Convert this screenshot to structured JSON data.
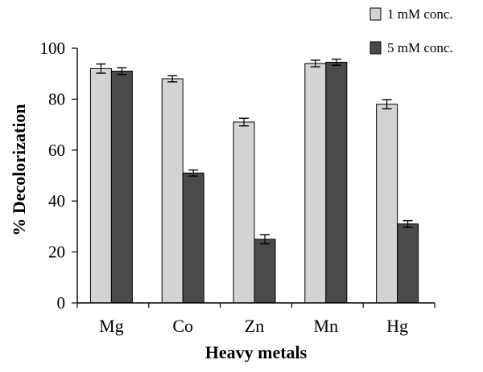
{
  "chart_data": {
    "type": "bar",
    "title": "",
    "xlabel": "Heavy metals",
    "ylabel": "% Decolorization",
    "ylim": [
      0,
      100
    ],
    "yticks": [
      0,
      20,
      40,
      60,
      80,
      100
    ],
    "categories": [
      "Mg",
      "Co",
      "Zn",
      "Mn",
      "Hg"
    ],
    "series": [
      {
        "name": "1 mM conc.",
        "color": "#d3d3d3",
        "values": [
          92,
          88,
          71,
          94,
          78
        ],
        "errors": [
          1.8,
          1.2,
          1.5,
          1.3,
          1.8
        ]
      },
      {
        "name": "5 mM conc.",
        "color": "#4a4a4a",
        "values": [
          91,
          51,
          25,
          94.5,
          31
        ],
        "errors": [
          1.3,
          1.2,
          1.8,
          1.2,
          1.3
        ]
      }
    ],
    "legend_position": "top-right"
  }
}
